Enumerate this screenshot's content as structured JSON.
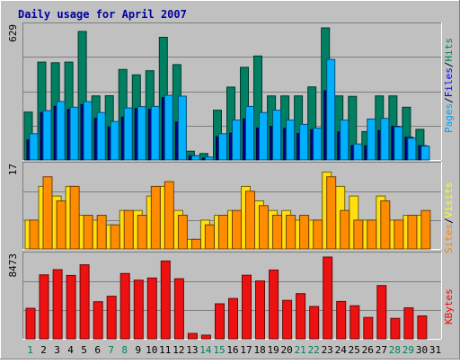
{
  "chart_data": {
    "type": "bar",
    "title": "Daily usage for April 2007",
    "categories": [
      "1",
      "2",
      "3",
      "4",
      "5",
      "6",
      "7",
      "8",
      "9",
      "10",
      "11",
      "12",
      "13",
      "14",
      "15",
      "16",
      "17",
      "18",
      "19",
      "20",
      "21",
      "22",
      "23",
      "24",
      "25",
      "26",
      "27",
      "28",
      "29",
      "30",
      "31"
    ],
    "weekend_days": [
      1,
      7,
      8,
      14,
      15,
      21,
      22,
      28,
      29
    ],
    "grid": true,
    "panels": [
      {
        "id": "hits",
        "max_label": "629",
        "ymax": 629,
        "legend": [
          {
            "label": "Pages",
            "color": "#00a0ff"
          },
          {
            "label": "Files",
            "color": "#0000ff"
          },
          {
            "label": "Hits",
            "color": "#008060"
          }
        ],
        "series": [
          {
            "name": "Hits",
            "color": "#007f62",
            "values": [
              228,
              466,
              463,
              466,
              612,
              305,
              306,
              431,
              405,
              425,
              584,
              454,
              42,
              31,
              237,
              347,
              441,
              495,
              305,
              305,
              305,
              348,
              629,
              305,
              303,
              135,
              305,
              305,
              251,
              146,
              null
            ]
          },
          {
            "name": "Files",
            "color": "#00008b",
            "values": [
              96,
              225,
              256,
              240,
              264,
              198,
              158,
              204,
              245,
              241,
              296,
              180,
              20,
              9,
              111,
              128,
              196,
              152,
              160,
              150,
              126,
              144,
              329,
              133,
              68,
              68,
              140,
              160,
              108,
              68,
              null
            ]
          },
          {
            "name": "Pages",
            "color": "#00b0ff",
            "values": [
              125,
              235,
              278,
              251,
              278,
              226,
              183,
              248,
              254,
              255,
              308,
              304,
              20,
              14,
              125,
              190,
              255,
              226,
              237,
              190,
              170,
              152,
              479,
              190,
              76,
              195,
              198,
              158,
              104,
              66,
              null
            ]
          }
        ]
      },
      {
        "id": "visits",
        "max_label": "17",
        "ymax": 17,
        "legend": [
          {
            "label": "Sites",
            "color": "#ff8000"
          },
          {
            "label": "Visits",
            "color": "#ffff00"
          }
        ],
        "series": [
          {
            "name": "Visits",
            "color": "#ffdf10",
            "values": [
              6,
              13,
              11,
              13,
              7,
              6,
              5,
              8,
              8,
              11,
              13,
              8,
              2,
              6,
              7,
              8,
              13,
              10,
              8,
              8,
              6,
              6,
              16,
              13,
              11,
              6,
              11,
              6,
              7,
              7,
              null
            ]
          },
          {
            "name": "Sites",
            "color": "#ff8c00",
            "values": [
              6,
              15,
              10,
              13,
              7,
              7,
              5,
              8,
              7,
              13,
              14,
              7,
              2,
              5,
              7,
              8,
              12,
              9,
              7,
              7,
              7,
              6,
              15,
              8,
              6,
              6,
              10,
              6,
              7,
              8,
              null
            ]
          }
        ]
      },
      {
        "id": "kbytes",
        "max_label": "8473",
        "ymax": 8473,
        "legend": [
          {
            "label": "KBytes",
            "color": "#ff0000"
          }
        ],
        "series": [
          {
            "name": "KBytes",
            "color": "#ee1111",
            "values": [
              3167,
              6625,
              7165,
              6577,
              7674,
              3850,
              4415,
              6769,
              6077,
              6306,
              8064,
              6227,
              562,
              381,
              3629,
              4178,
              6591,
              5998,
              7133,
              3989,
              4684,
              3350,
              8473,
              3871,
              3424,
              2220,
              5517,
              2126,
              3211,
              2373,
              null
            ]
          }
        ]
      }
    ]
  }
}
